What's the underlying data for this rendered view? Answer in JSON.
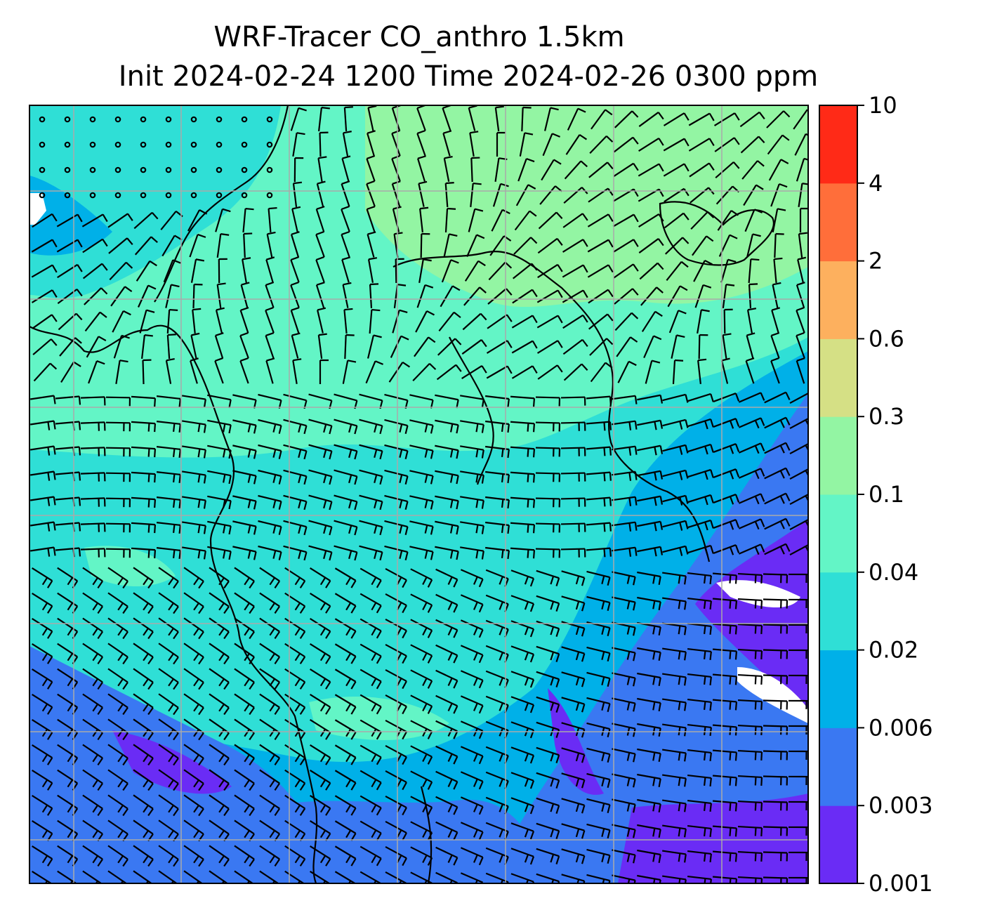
{
  "chart_data": {
    "type": "heatmap",
    "title_line1": "WRF-Tracer CO_anthro 1.5km",
    "title_line2": "Init 2024-02-24 1200 Time 2024-02-26 0300 ppm",
    "field": "CO_anthro",
    "units": "ppm",
    "levels": [
      "0.001",
      "0.003",
      "0.006",
      "0.02",
      "0.04",
      "0.1",
      "0.3",
      "0.6",
      "2",
      "4",
      "10"
    ],
    "colors": [
      "#6a2cf5",
      "#3a78f2",
      "#00b0e8",
      "#2fdfd6",
      "#63f5c6",
      "#93f5a3",
      "#d5e085",
      "#fdb05e",
      "#ff6e3a",
      "#ff2a17"
    ],
    "gridlines": true,
    "overlay": "wind barbs and coastlines",
    "colorbar_position": "right"
  }
}
